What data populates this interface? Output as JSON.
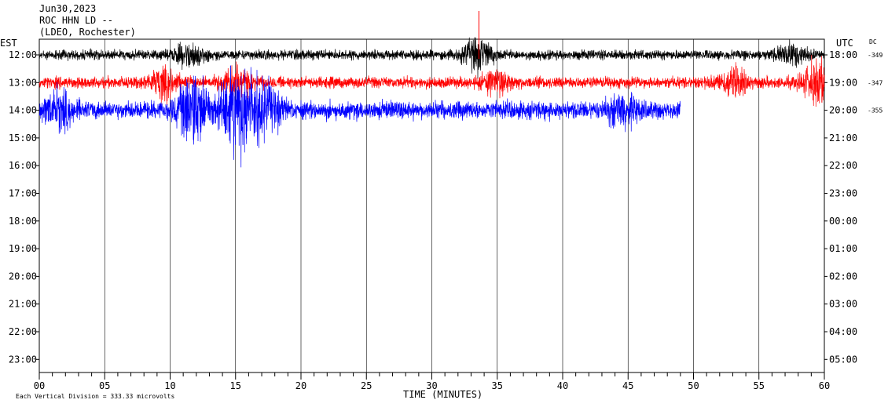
{
  "header": {
    "date": "Jun30,2023",
    "station": "ROC HHN LD --",
    "network": "(LDEO, Rochester)"
  },
  "left_axis_label": "EST",
  "right_axis_label": "UTC",
  "dc_label": "DC",
  "footer": {
    "scale_text": "Each Vertical Division =  333.33 microvolts"
  },
  "chart_data": {
    "type": "line",
    "title": "",
    "xlabel": "TIME (MINUTES)",
    "ylabel": "",
    "xlim": [
      0,
      60
    ],
    "x_ticks": [
      "00",
      "05",
      "10",
      "15",
      "20",
      "25",
      "30",
      "35",
      "40",
      "45",
      "50",
      "55",
      "60"
    ],
    "est_ticks": [
      "12:00",
      "13:00",
      "14:00",
      "15:00",
      "16:00",
      "17:00",
      "18:00",
      "19:00",
      "20:00",
      "21:00",
      "22:00",
      "23:00"
    ],
    "utc_ticks": [
      "18:00",
      "19:00",
      "20:00",
      "21:00",
      "22:00",
      "23:00",
      "00:00",
      "01:00",
      "02:00",
      "03:00",
      "04:00",
      "05:00"
    ],
    "grid": true,
    "series": [
      {
        "hour_row": 0,
        "color": "#000000",
        "dc_offset": "-349",
        "end_minute": 60,
        "noise_level": 0.3,
        "bursts": [
          [
            11.5,
            0.6
          ],
          [
            33.5,
            0.9
          ],
          [
            57.5,
            0.6
          ]
        ]
      },
      {
        "hour_row": 1,
        "color": "#ff0000",
        "dc_offset": "-347",
        "end_minute": 60,
        "noise_level": 0.35,
        "bursts": [
          [
            9.5,
            0.8
          ],
          [
            15.0,
            0.9
          ],
          [
            35.0,
            0.6
          ],
          [
            53.0,
            0.7
          ],
          [
            59.5,
            1.2
          ]
        ]
      },
      {
        "hour_row": 2,
        "color": "#0000ff",
        "dc_offset": "-355",
        "end_minute": 49,
        "noise_level": 0.55,
        "bursts": [
          [
            1.5,
            0.9
          ],
          [
            11.8,
            2.2
          ],
          [
            14.8,
            1.8
          ],
          [
            16.0,
            1.5
          ],
          [
            17.5,
            1.0
          ],
          [
            44.5,
            0.8
          ]
        ]
      }
    ]
  }
}
